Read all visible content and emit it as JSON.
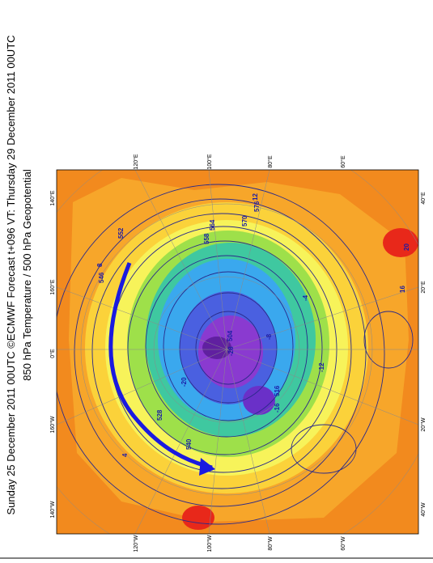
{
  "header": {
    "title_line1": "Sunday 25 December 2011 00UTC ©ECMWF Forecast t+096 VT: Thursday 29 December 2011 00UTC",
    "title_line2": "850 hPa Temperature / 500 hPa Geopotential"
  },
  "longitude_labels": [
    "140°E",
    "120°E",
    "100°E",
    "80°E",
    "60°E",
    "40°E",
    "160°E",
    "20°E",
    "0°E",
    "160°W",
    "20°W",
    "140°W",
    "120°W",
    "100°W",
    "80°W",
    "60°W",
    "40°W"
  ],
  "contour_labels": [
    "576",
    "570",
    "564",
    "558",
    "552",
    "546",
    "540",
    "528",
    "516",
    "504",
    "12",
    "16",
    "20",
    "8",
    "4",
    "-4",
    "-8",
    "-12",
    "-16",
    "-20",
    "-28"
  ]
}
